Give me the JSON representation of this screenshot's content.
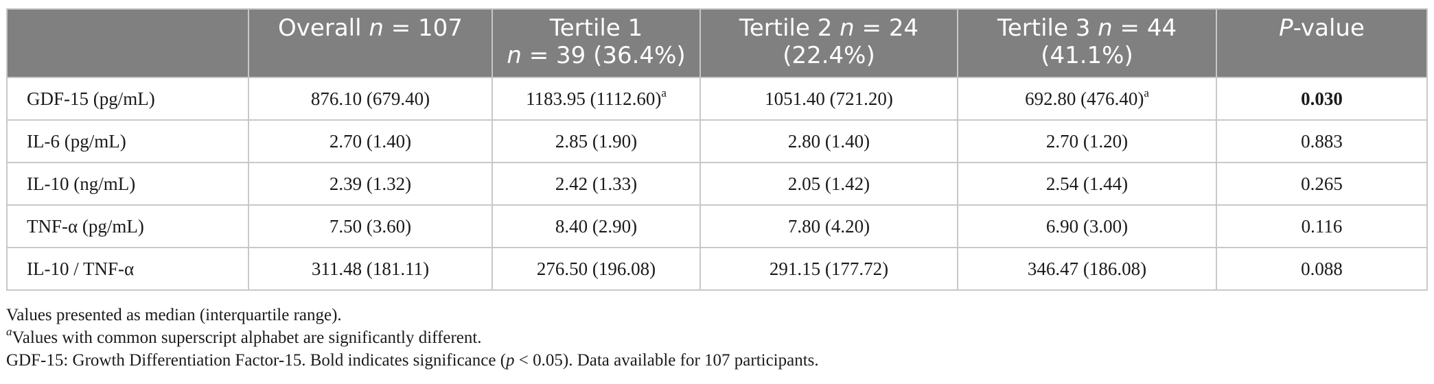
{
  "header": {
    "corner": "",
    "overall": {
      "prefix": "Overall ",
      "n_sym": "n",
      "suffix": " = 107"
    },
    "t1": {
      "line1": "Tertile 1",
      "n_sym": "n",
      "line2": " = 39 (36.4%)"
    },
    "t2": {
      "line1a": "Tertile 2 ",
      "n_sym": "n",
      "line1b": " = 24",
      "line2": "(22.4%)"
    },
    "t3": {
      "line1a": "Tertile 3 ",
      "n_sym": "n",
      "line1b": " = 44",
      "line2": "(41.1%)"
    },
    "pval": {
      "p_sym": "P",
      "suffix": "-value"
    }
  },
  "rows": [
    {
      "label": "GDF-15 (pg/mL)",
      "overall": "876.10 (679.40)",
      "t1": "1183.95 (1112.60)",
      "t1_sup": "a",
      "t2": "1051.40 (721.20)",
      "t3": "692.80 (476.40)",
      "t3_sup": "a",
      "p": "0.030"
    },
    {
      "label": "IL-6 (pg/mL)",
      "overall": "2.70 (1.40)",
      "t1": "2.85 (1.90)",
      "t2": "2.80 (1.40)",
      "t3": "2.70 (1.20)",
      "p": "0.883"
    },
    {
      "label": "IL-10 (ng/mL)",
      "overall": "2.39 (1.32)",
      "t1": "2.42 (1.33)",
      "t2": "2.05 (1.42)",
      "t3": "2.54 (1.44)",
      "p": "0.265"
    },
    {
      "label": "TNF-α (pg/mL)",
      "overall": "7.50 (3.60)",
      "t1": "8.40 (2.90)",
      "t2": "7.80 (4.20)",
      "t3": "6.90 (3.00)",
      "p": "0.116"
    },
    {
      "label": "IL-10 / TNF-α",
      "overall": "311.48 (181.11)",
      "t1": "276.50 (196.08)",
      "t2": "291.15 (177.72)",
      "t3": "346.47 (186.08)",
      "p": "0.088"
    }
  ],
  "notes": {
    "n1": "Values presented as median (interquartile range).",
    "n2_sup": "a",
    "n2": "Values with common superscript alphabet are significantly different.",
    "n3a": "GDF-15: Growth Differentiation Factor-15. Bold indicates significance (",
    "n3_p": "p",
    "n3b": " < 0.05). Data available for 107 participants."
  }
}
